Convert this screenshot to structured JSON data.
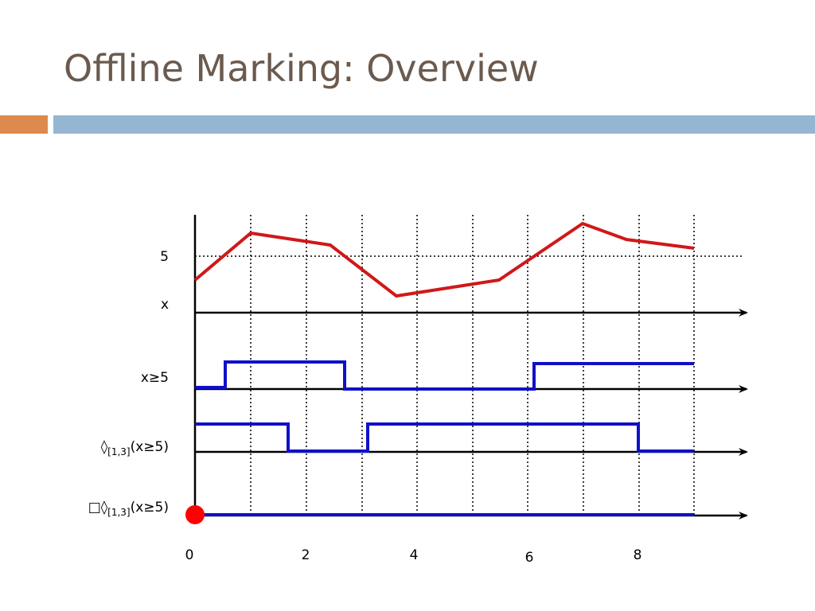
{
  "header": {
    "title": "Offline Marking: Overview"
  },
  "diagram": {
    "threshold_label": "5",
    "rows": [
      {
        "label": "x"
      },
      {
        "label": "x≥5"
      },
      {
        "operator": "◊",
        "interval": "[1,3]",
        "formula": "(x≥5)"
      },
      {
        "operator": "□◊",
        "interval": "[1,3]",
        "formula": "(x≥5)"
      }
    ],
    "time_labels": [
      "0",
      "2",
      "4",
      "6",
      "8"
    ]
  }
}
